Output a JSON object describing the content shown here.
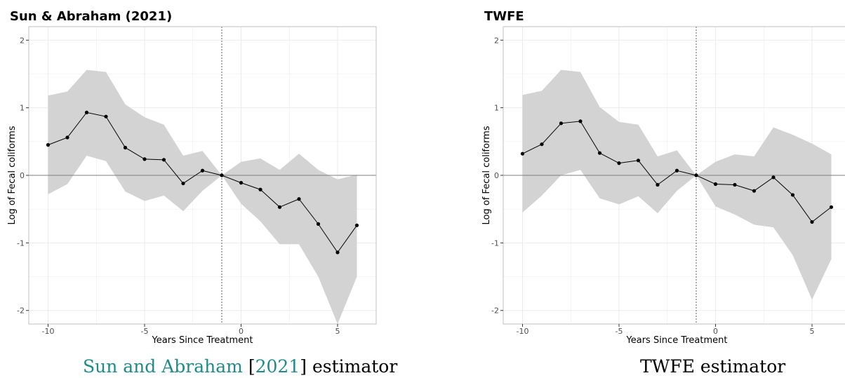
{
  "colors": {
    "band": "#d3d3d3",
    "line": "#000000",
    "caption_accent": "#1f8a8a",
    "grid": "#ebebeb",
    "zero": "#7f7f7f"
  },
  "captions": {
    "left": {
      "cite_author": "Sun and Abraham",
      "cite_open": "[",
      "cite_year": "2021",
      "cite_close": "]",
      "rest": " estimator"
    },
    "right": "TWFE estimator"
  },
  "chart_data": [
    {
      "type": "line",
      "title": "Sun & Abraham (2021)",
      "xlabel": "Years Since Treatment",
      "ylabel": "Log of Fecal coliforms",
      "xlim": [
        -11,
        7
      ],
      "ylim": [
        -2.2,
        2.2
      ],
      "xticks": [
        -10,
        -5,
        0,
        5
      ],
      "yticks": [
        -2,
        -1,
        0,
        1,
        2
      ],
      "vline": -1,
      "hline": 0,
      "grid": true,
      "x": [
        -10,
        -9,
        -8,
        -7,
        -6,
        -5,
        -4,
        -3,
        -2,
        -1,
        0,
        1,
        2,
        3,
        4,
        5,
        6
      ],
      "estimate": [
        0.45,
        0.56,
        0.93,
        0.87,
        0.41,
        0.24,
        0.23,
        -0.12,
        0.07,
        0.0,
        -0.11,
        -0.21,
        -0.47,
        -0.35,
        -0.72,
        -1.14,
        -0.74
      ],
      "ci_low": [
        -0.28,
        -0.13,
        0.29,
        0.21,
        -0.24,
        -0.38,
        -0.3,
        -0.53,
        -0.23,
        0.0,
        -0.42,
        -0.68,
        -1.02,
        -1.02,
        -1.5,
        -2.2,
        -1.5
      ],
      "ci_high": [
        1.18,
        1.24,
        1.56,
        1.53,
        1.05,
        0.86,
        0.75,
        0.29,
        0.36,
        0.0,
        0.2,
        0.25,
        0.08,
        0.32,
        0.08,
        -0.06,
        0.01
      ]
    },
    {
      "type": "line",
      "title": "TWFE",
      "xlabel": "Years Since Treatment",
      "ylabel": "Log of Fecal coliforms",
      "xlim": [
        -11,
        7
      ],
      "ylim": [
        -2.2,
        2.2
      ],
      "xticks": [
        -10,
        -5,
        0,
        5
      ],
      "yticks": [
        -2,
        -1,
        0,
        1,
        2
      ],
      "vline": -1,
      "hline": 0,
      "grid": true,
      "x": [
        -10,
        -9,
        -8,
        -7,
        -6,
        -5,
        -4,
        -3,
        -2,
        -1,
        0,
        1,
        2,
        3,
        4,
        5,
        6
      ],
      "estimate": [
        0.32,
        0.46,
        0.77,
        0.8,
        0.33,
        0.18,
        0.22,
        -0.14,
        0.07,
        0.0,
        -0.13,
        -0.14,
        -0.23,
        -0.03,
        -0.29,
        -0.69,
        -0.47
      ],
      "ci_low": [
        -0.55,
        -0.3,
        0.0,
        0.08,
        -0.34,
        -0.43,
        -0.31,
        -0.56,
        -0.23,
        0.0,
        -0.46,
        -0.58,
        -0.73,
        -0.77,
        -1.18,
        -1.84,
        -1.24
      ],
      "ci_high": [
        1.19,
        1.25,
        1.56,
        1.53,
        1.01,
        0.79,
        0.75,
        0.28,
        0.37,
        0.0,
        0.2,
        0.31,
        0.28,
        0.71,
        0.6,
        0.47,
        0.31
      ]
    }
  ]
}
